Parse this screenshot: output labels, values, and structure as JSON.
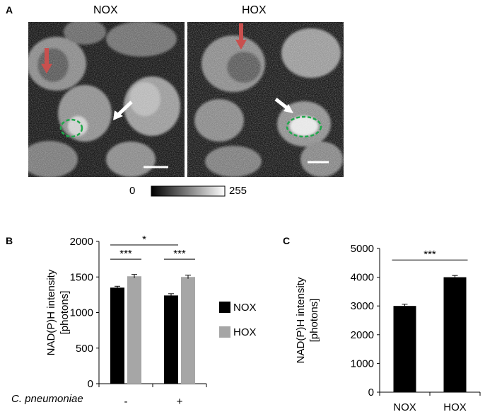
{
  "panel_a": {
    "letter": "A",
    "titles": [
      "NOX",
      "HOX"
    ],
    "colorbar": {
      "min_label": "0",
      "max_label": "255"
    }
  },
  "panel_b": {
    "letter": "B",
    "ylabel_line1": "NAD(P)H intensity",
    "ylabel_line2": "[photons]",
    "xlabel": "C. pneumoniae",
    "legend": [
      {
        "label": "NOX",
        "color": "#000000"
      },
      {
        "label": "HOX",
        "color": "#a6a6a6"
      }
    ],
    "significance": [
      "***",
      "***",
      "*"
    ]
  },
  "panel_c": {
    "letter": "C",
    "ylabel_line1": "NAD(P)H intensity",
    "ylabel_line2": "[photons]",
    "significance": [
      "***"
    ]
  },
  "chart_data": [
    {
      "type": "bar",
      "panel": "B",
      "categories": [
        "-",
        "+"
      ],
      "series": [
        {
          "name": "NOX",
          "values": [
            1350,
            1240
          ],
          "errors": [
            20,
            25
          ],
          "color": "#000000"
        },
        {
          "name": "HOX",
          "values": [
            1510,
            1500
          ],
          "errors": [
            25,
            25
          ],
          "color": "#a6a6a6"
        }
      ],
      "ylim": [
        0,
        2000
      ],
      "yticks": [
        0,
        500,
        1000,
        1500,
        2000
      ],
      "xlabel": "C. pneumoniae",
      "ylabel": "NAD(P)H intensity [photons]"
    },
    {
      "type": "bar",
      "panel": "C",
      "categories": [
        "NOX",
        "HOX"
      ],
      "values": [
        3000,
        4000
      ],
      "errors": [
        60,
        60
      ],
      "ylim": [
        0,
        5000
      ],
      "yticks": [
        0,
        1000,
        2000,
        3000,
        4000,
        5000
      ],
      "ylabel": "NAD(P)H intensity [photons]"
    }
  ]
}
